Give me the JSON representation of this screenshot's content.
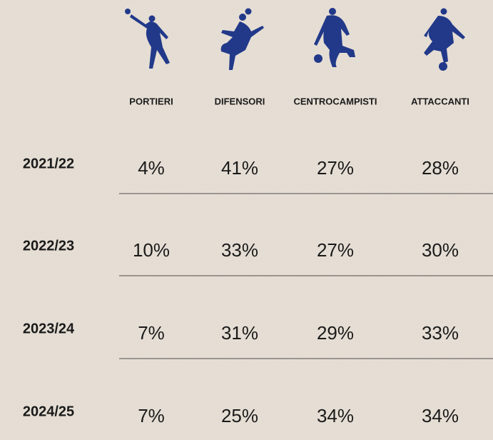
{
  "table": {
    "header": [
      "PORTIERI",
      "DIFENSORI",
      "CENTROCAMPISTI",
      "ATTACCANTI"
    ],
    "rows": [
      [
        "2021/22",
        "4%",
        "41%",
        "27%",
        "28%"
      ],
      [
        "2022/23",
        "10%",
        "33%",
        "27%",
        "30%"
      ],
      [
        "2023/24",
        "7%",
        "31%",
        "29%",
        "33%"
      ],
      [
        "2024/25",
        "7%",
        "25%",
        "34%",
        "34%"
      ]
    ]
  }
}
